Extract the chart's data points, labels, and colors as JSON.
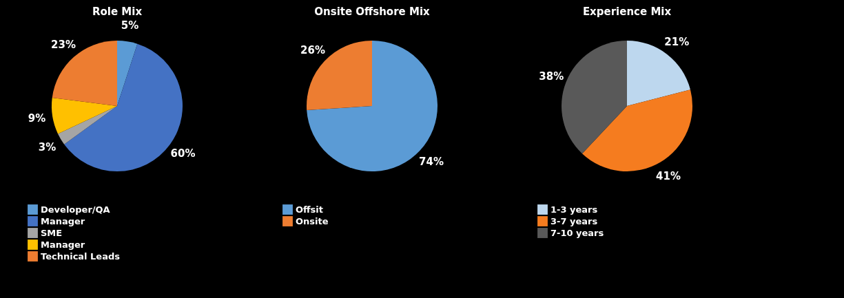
{
  "chart_data": [
    {
      "type": "pie",
      "title": "Role Mix",
      "categories": [
        "Developer/QA",
        "Manager",
        "SME",
        "Manager",
        "Technical Leads"
      ],
      "values": [
        5,
        60,
        3,
        9,
        23
      ],
      "colors": [
        "#5b9bd5",
        "#4472c4",
        "#a5a5a5",
        "#ffc000",
        "#ed7d31"
      ],
      "value_labels": [
        "5%",
        "60%",
        "3%",
        "9%",
        "23%"
      ],
      "legend": "bottom"
    },
    {
      "type": "pie",
      "title": "Onsite Offshore Mix",
      "categories": [
        "Offsit",
        "Onsite"
      ],
      "values": [
        74,
        26
      ],
      "colors": [
        "#5b9bd5",
        "#ed7d31"
      ],
      "value_labels": [
        "74%",
        "26%"
      ],
      "legend": "bottom"
    },
    {
      "type": "pie",
      "title": "Experience Mix",
      "categories": [
        "1-3 years",
        "3-7 years",
        "7-10 years"
      ],
      "values": [
        21,
        41,
        38
      ],
      "colors": [
        "#bdd7ee",
        "#f57c1f",
        "#595959"
      ],
      "value_labels": [
        "21%",
        "41%",
        "38%"
      ],
      "legend": "bottom"
    }
  ]
}
